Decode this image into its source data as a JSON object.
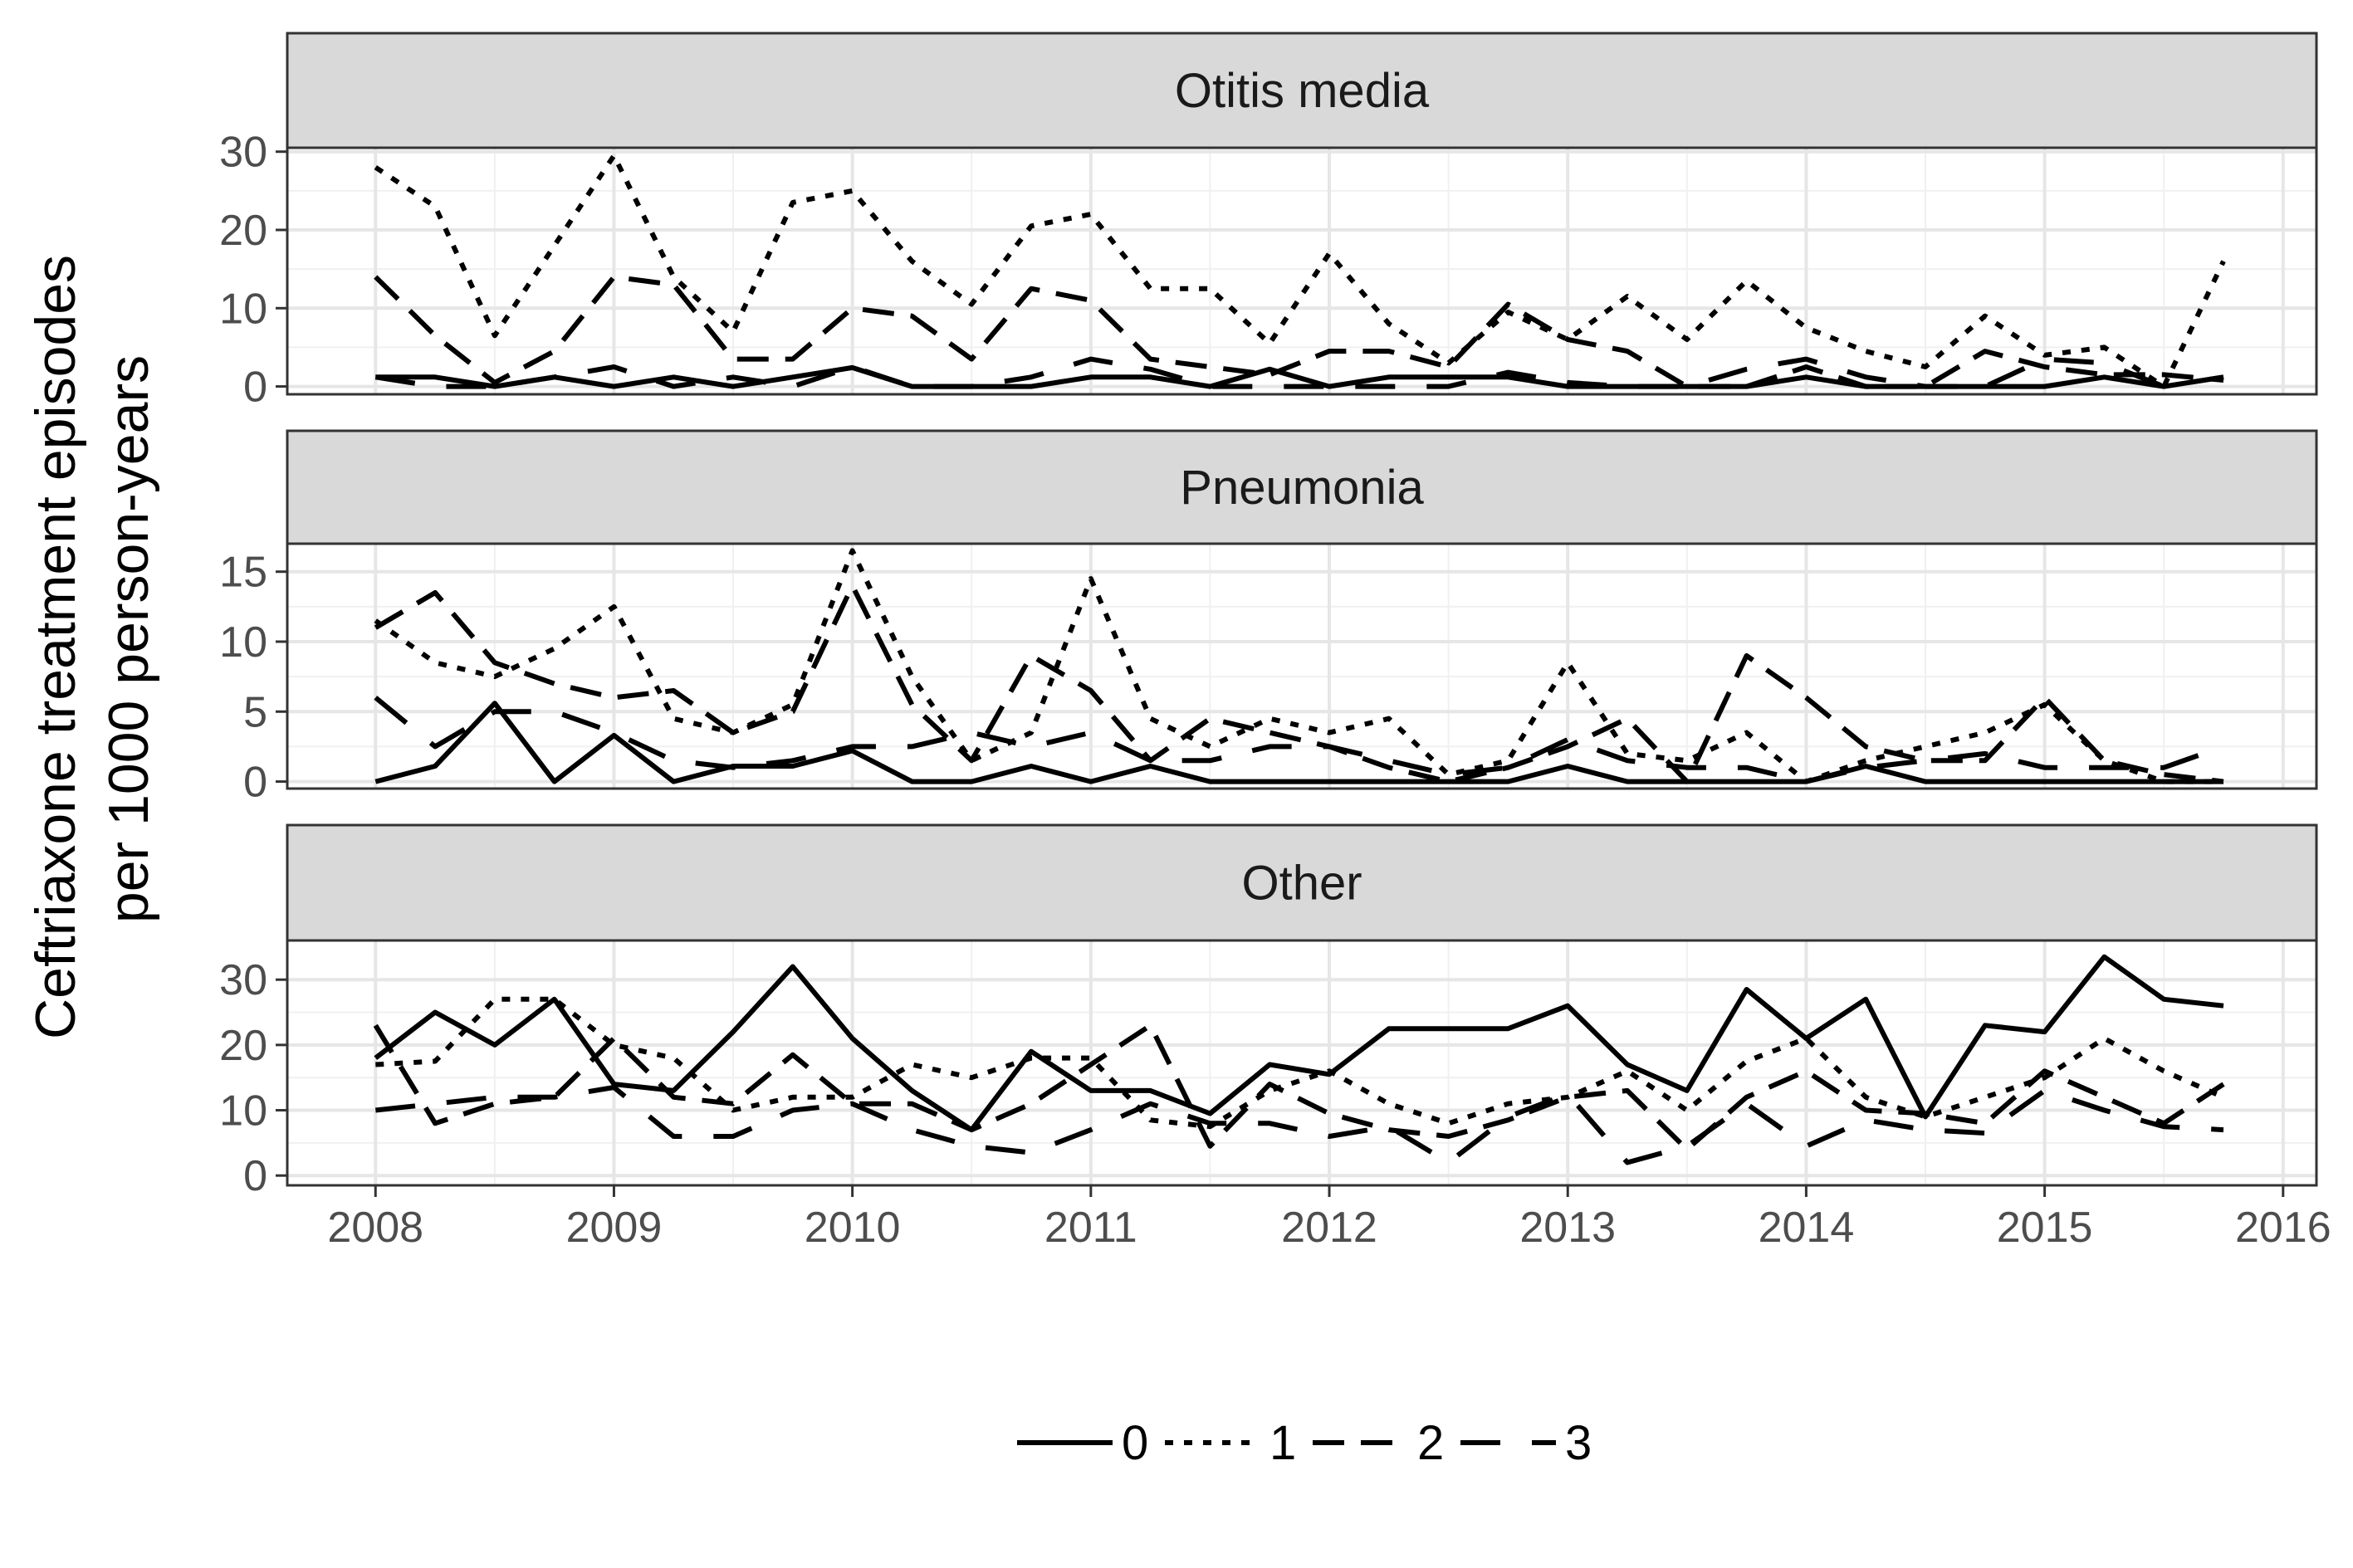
{
  "chart_data": {
    "type": "line",
    "ylabel": [
      "Ceftriaxone treatment episodes",
      "per 1000 person-years"
    ],
    "x_ticks": [
      "2008",
      "2009",
      "2010",
      "2011",
      "2012",
      "2013",
      "2014",
      "2015",
      "2016"
    ],
    "xlim": [
      2007.63,
      2016.14
    ],
    "grid": true,
    "legend": {
      "position": "bottom",
      "entries": [
        "0",
        "1",
        "2",
        "3"
      ]
    },
    "x": [
      2008,
      2008.25,
      2008.5,
      2008.75,
      2009,
      2009.25,
      2009.5,
      2009.75,
      2010,
      2010.25,
      2010.5,
      2010.75,
      2011,
      2011.25,
      2011.5,
      2011.75,
      2012,
      2012.25,
      2012.5,
      2012.75,
      2013,
      2013.25,
      2013.5,
      2013.75,
      2014,
      2014.25,
      2014.5,
      2014.75,
      2015,
      2015.25,
      2015.5,
      2015.75
    ],
    "panels": [
      {
        "title": "Otitis media",
        "ylim": [
          -1,
          30.5
        ],
        "yticks": [
          0,
          10,
          20,
          30
        ],
        "series": [
          {
            "name": "0",
            "values": [
              1.2,
              1.2,
              0,
              1.2,
              0,
              1.2,
              0,
              1.2,
              2.4,
              0,
              0,
              0,
              1.2,
              1.2,
              0,
              2.2,
              0,
              1.2,
              1.2,
              1.2,
              0,
              0,
              0,
              0,
              1.2,
              0,
              0,
              0,
              0,
              1.2,
              0,
              1.2
            ]
          },
          {
            "name": "1",
            "values": [
              28,
              23,
              6.5,
              18,
              29.5,
              14,
              7,
              23.5,
              25,
              16,
              10.5,
              20.5,
              22,
              12.5,
              12.5,
              5.5,
              17,
              8,
              3,
              9.5,
              6,
              11.5,
              6,
              13.5,
              7.5,
              4.5,
              2.5,
              9,
              4,
              5,
              0,
              16
            ]
          },
          {
            "name": "2",
            "values": [
              14,
              6.5,
              0.5,
              4.5,
              14,
              13,
              3.5,
              3.5,
              10,
              9,
              3.5,
              12.5,
              11,
              3.5,
              2.5,
              1.5,
              4.5,
              4.5,
              2.5,
              10.5,
              6,
              4.5,
              0,
              0,
              2.5,
              0,
              0,
              4.5,
              2.5,
              1.5,
              1.5,
              0.8
            ]
          },
          {
            "name": "3",
            "values": [
              1.2,
              0,
              0,
              1.2,
              2.5,
              0,
              1.2,
              0,
              2.5,
              0,
              0,
              1.2,
              3.5,
              2.2,
              0,
              0,
              0,
              0,
              0,
              1.8,
              0.5,
              0,
              0,
              2.2,
              3.5,
              1.2,
              0,
              0,
              3.5,
              3,
              0,
              1.2
            ]
          }
        ]
      },
      {
        "title": "Pneumonia",
        "ylim": [
          -0.5,
          17
        ],
        "yticks": [
          0,
          5,
          10,
          15
        ],
        "series": [
          {
            "name": "0",
            "values": [
              0,
              1.1,
              5.6,
              0,
              3.3,
              0,
              1.1,
              1.1,
              2.2,
              0,
              0,
              1.1,
              0,
              1.1,
              0,
              0,
              0,
              0,
              0,
              0,
              1.1,
              0,
              0,
              0,
              0,
              1.1,
              0,
              0,
              0,
              0,
              0,
              0
            ]
          },
          {
            "name": "1",
            "values": [
              11.5,
              8.5,
              7.5,
              9.5,
              12.5,
              4.5,
              3.5,
              5.5,
              16.5,
              7.5,
              1.5,
              3.5,
              14.5,
              4.5,
              2.5,
              4.5,
              3.5,
              4.5,
              0.5,
              1.5,
              8.5,
              2,
              1.5,
              3.5,
              0,
              1.5,
              2.5,
              3.5,
              5.5,
              1.5,
              0,
              0
            ]
          },
          {
            "name": "2",
            "values": [
              11,
              13.5,
              8.5,
              7,
              6,
              6.5,
              3.5,
              5,
              14,
              5.5,
              1.5,
              9,
              6.5,
              1.5,
              4.5,
              3.5,
              2.5,
              1,
              0,
              1,
              2.5,
              4.5,
              0,
              9,
              6,
              2.5,
              1.5,
              1.5,
              6,
              1.5,
              0.5,
              0
            ]
          },
          {
            "name": "3",
            "values": [
              6,
              2.5,
              5,
              5,
              3.5,
              1.5,
              1,
              1.5,
              2.5,
              2.5,
              3.5,
              2.5,
              3.5,
              1.5,
              1.5,
              2.5,
              2.5,
              1.5,
              0.5,
              1,
              3,
              1.5,
              1,
              1,
              0,
              1,
              1.5,
              2,
              1,
              1,
              1,
              2.5
            ]
          }
        ]
      },
      {
        "title": "Other",
        "ylim": [
          -1.5,
          36
        ],
        "yticks": [
          0,
          10,
          20,
          30
        ],
        "series": [
          {
            "name": "0",
            "values": [
              18,
              25,
              20,
              27,
              14,
              13,
              22,
              32,
              21,
              13,
              7,
              19,
              13,
              13,
              9.5,
              17,
              15.5,
              22.5,
              22.5,
              22.5,
              26,
              17,
              13,
              28.5,
              21,
              27,
              9,
              23,
              22,
              33.5,
              27,
              26
            ]
          },
          {
            "name": "1",
            "values": [
              17,
              17.5,
              27,
              27,
              20,
              18,
              10,
              12,
              12,
              17,
              15,
              18,
              18,
              8.5,
              7.5,
              13,
              16,
              11,
              8,
              11,
              12,
              16,
              10,
              17.5,
              21,
              12,
              9,
              12,
              15,
              21,
              16,
              12
            ]
          },
          {
            "name": "2",
            "values": [
              23,
              8,
              11,
              12,
              21,
              12,
              11,
              18.5,
              11,
              11,
              7,
              11,
              17,
              23,
              4.5,
              14,
              9.5,
              7,
              6,
              8.5,
              12,
              13,
              4,
              12,
              16,
              10,
              9.5,
              8,
              16,
              12,
              8,
              14
            ]
          },
          {
            "name": "3",
            "values": [
              10,
              11,
              12,
              12,
              13.5,
              6,
              6,
              10,
              11,
              7,
              4.5,
              3.5,
              7,
              11,
              8,
              8,
              6,
              7.5,
              2,
              9,
              12.5,
              2,
              4.5,
              11,
              4.5,
              8.5,
              7,
              6.5,
              13,
              10,
              7.5,
              7
            ]
          }
        ]
      }
    ]
  }
}
